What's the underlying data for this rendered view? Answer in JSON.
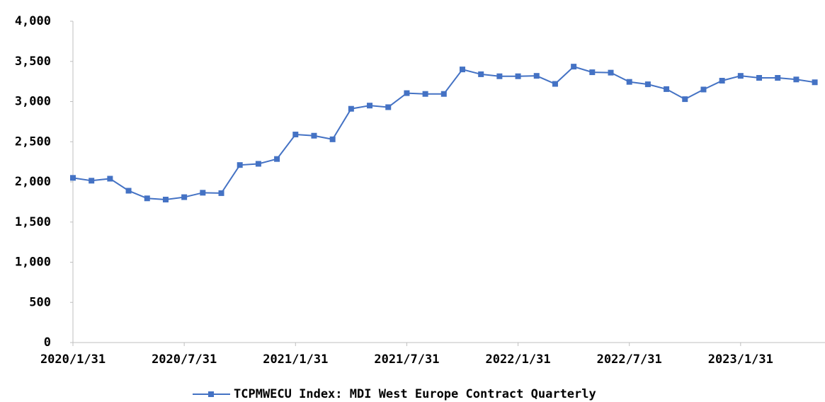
{
  "chart_data": {
    "type": "line",
    "categories": [
      "2020/1/31",
      null,
      null,
      null,
      null,
      null,
      "2020/7/31",
      null,
      null,
      null,
      null,
      null,
      "2021/1/31",
      null,
      null,
      null,
      null,
      null,
      "2021/7/31",
      null,
      null,
      null,
      null,
      null,
      "2022/1/31",
      null,
      null,
      null,
      null,
      null,
      "2022/7/31",
      null,
      null,
      null,
      null,
      null,
      "2023/1/31",
      null,
      null,
      null,
      null
    ],
    "series": [
      {
        "name": "TCPMWECU Index: MDI West Europe Contract Quarterly",
        "color": "#4472c4",
        "values": [
          2050,
          2015,
          2040,
          1890,
          1795,
          1780,
          1810,
          1865,
          1860,
          2210,
          2225,
          2285,
          2590,
          2575,
          2530,
          2910,
          2950,
          2930,
          3105,
          3095,
          3095,
          3400,
          3340,
          3315,
          3315,
          3320,
          3220,
          3435,
          3365,
          3360,
          3245,
          3215,
          3155,
          3030,
          3150,
          3260,
          3320,
          3295,
          3295,
          3275,
          3240
        ]
      }
    ],
    "ylim": [
      0,
      4000
    ],
    "yticks": [
      0,
      500,
      {
        "value": 1000,
        "label": "1,000"
      },
      {
        "value": 1500,
        "label": "1,500"
      },
      {
        "value": 2000,
        "label": "2,000"
      },
      {
        "value": 2500,
        "label": "2,500"
      },
      {
        "value": 3000,
        "label": "3,000"
      },
      {
        "value": 3500,
        "label": "3,500"
      },
      {
        "value": 4000,
        "label": "4,000"
      }
    ],
    "legend": "bottom"
  }
}
